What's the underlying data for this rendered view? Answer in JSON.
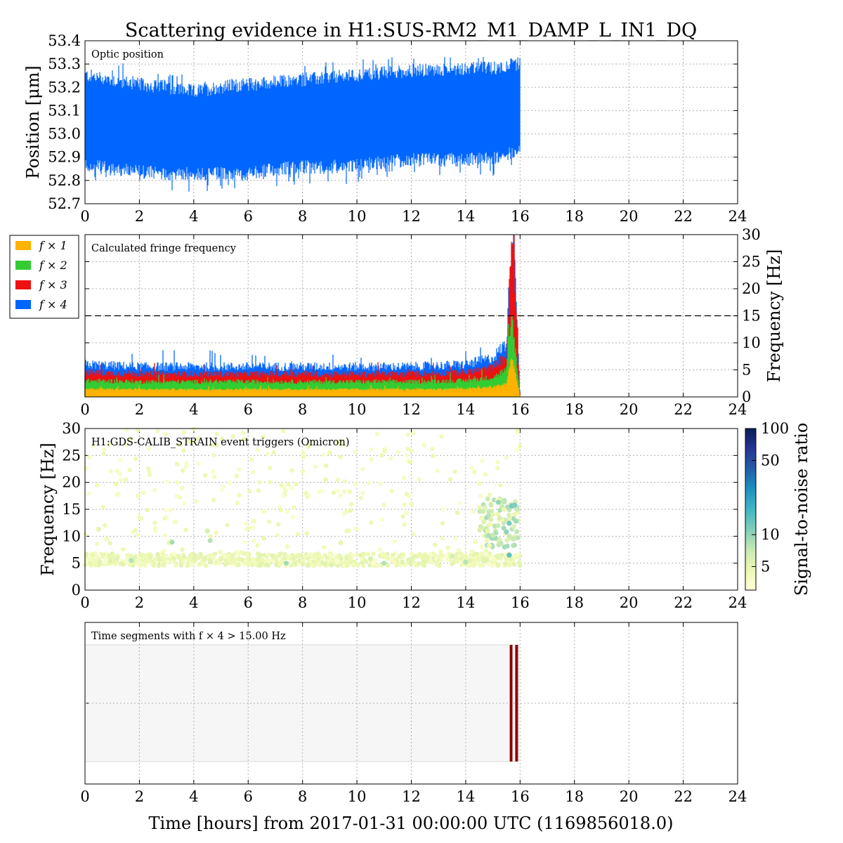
{
  "figure": {
    "title": "Scattering evidence in H1:SUS-RM2_M1_DAMP_L_IN1_DQ",
    "xlabel": "Time [hours] from 2017-01-31 00:00:00 UTC (1169856018.0)"
  },
  "colors": {
    "position": "#0066ff",
    "f1": "#ffb200",
    "f2": "#33cc33",
    "f3": "#ee1111",
    "f4": "#0066ff",
    "segment": "#8b0000",
    "segment_bg": "#f6f6f6"
  },
  "legend": {
    "f1": "f × 1",
    "f2": "f × 2",
    "f3": "f × 3",
    "f4": "f × 4"
  },
  "colorbar": {
    "label": "Signal-to-noise ratio",
    "ticks": [
      "5",
      "10",
      "50",
      "100"
    ],
    "scale": "log",
    "range": [
      3,
      100
    ],
    "colormap": [
      "#ffffd9",
      "#edf8b1",
      "#c7e9b4",
      "#7fcdbb",
      "#41b6c4",
      "#1d91c0",
      "#225ea8",
      "#253494",
      "#081d58"
    ]
  },
  "chart_data": [
    {
      "type": "area",
      "annotation": "Optic position",
      "ylabel": "Position [μm]",
      "xlim": [
        0,
        24
      ],
      "ylim": [
        52.7,
        53.4
      ],
      "xticks": [
        "0",
        "2",
        "4",
        "6",
        "8",
        "10",
        "12",
        "14",
        "16",
        "18",
        "20",
        "22",
        "24"
      ],
      "yticks": [
        "52.7",
        "52.8",
        "52.9",
        "53.0",
        "53.1",
        "53.2",
        "53.3",
        "53.4"
      ],
      "grid": true,
      "series": [
        {
          "x": [
            0,
            1,
            2,
            3,
            4,
            5,
            6,
            7,
            8,
            9,
            10,
            11,
            12,
            13,
            14,
            15,
            15.5,
            16
          ],
          "y_upper": [
            53.24,
            53.22,
            53.2,
            53.19,
            53.17,
            53.19,
            53.2,
            53.21,
            53.22,
            53.23,
            53.24,
            53.25,
            53.26,
            53.26,
            53.27,
            53.27,
            53.28,
            53.29
          ],
          "y_lower": [
            52.88,
            52.86,
            52.85,
            52.84,
            52.84,
            52.84,
            52.84,
            52.86,
            52.87,
            52.87,
            52.88,
            52.89,
            52.9,
            52.9,
            52.9,
            52.91,
            52.92,
            52.96
          ]
        }
      ]
    },
    {
      "type": "area",
      "annotation": "Calculated fringe frequency",
      "ylabel": "Frequency [Hz]",
      "xlim": [
        0,
        24
      ],
      "ylim": [
        0,
        30
      ],
      "xticks": [
        "0",
        "2",
        "4",
        "6",
        "8",
        "10",
        "12",
        "14",
        "16",
        "18",
        "20",
        "22",
        "24"
      ],
      "yticks": [
        "0",
        "5",
        "10",
        "15",
        "20",
        "25",
        "30"
      ],
      "threshold": 15,
      "grid": true,
      "series": [
        {
          "name": "f × 1",
          "x": [
            0,
            2,
            4,
            6,
            8,
            10,
            12,
            14,
            15,
            15.5,
            15.7,
            15.8,
            16
          ],
          "values": [
            1.5,
            1.4,
            1.4,
            1.4,
            1.4,
            1.4,
            1.4,
            1.5,
            1.8,
            2.5,
            7.5,
            5,
            0
          ]
        },
        {
          "name": "f × 2",
          "x": [
            0,
            2,
            4,
            6,
            8,
            10,
            12,
            14,
            15,
            15.5,
            15.7,
            15.8,
            16
          ],
          "values": [
            3,
            2.8,
            2.8,
            2.8,
            2.8,
            2.8,
            2.8,
            3,
            3.6,
            5,
            15,
            10,
            0
          ]
        },
        {
          "name": "f × 3",
          "x": [
            0,
            2,
            4,
            6,
            8,
            10,
            12,
            14,
            15,
            15.5,
            15.7,
            15.8,
            16
          ],
          "values": [
            4.5,
            4.2,
            4.2,
            4.2,
            4.2,
            4.2,
            4.2,
            4.5,
            5.4,
            7.5,
            30,
            21,
            0
          ]
        },
        {
          "name": "f × 4",
          "x": [
            0,
            2,
            4,
            6,
            8,
            10,
            12,
            14,
            15,
            15.5,
            15.7,
            15.8,
            16
          ],
          "values": [
            6,
            5.6,
            5.6,
            5.6,
            5.6,
            5.6,
            5.6,
            6,
            7.2,
            10,
            30,
            28,
            0
          ]
        }
      ]
    },
    {
      "type": "scatter",
      "annotation": "H1:GDS-CALIB_STRAIN event triggers (Omicron)",
      "ylabel": "Frequency [Hz]",
      "xlim": [
        0,
        24
      ],
      "ylim": [
        0,
        30
      ],
      "xticks": [
        "0",
        "2",
        "4",
        "6",
        "8",
        "10",
        "12",
        "14",
        "16",
        "18",
        "20",
        "22",
        "24"
      ],
      "yticks": [
        "0",
        "5",
        "10",
        "15",
        "20",
        "25",
        "30"
      ],
      "grid": true,
      "points": [
        {
          "x": 0.2,
          "y": 5.8,
          "snr": 4
        },
        {
          "x": 0.5,
          "y": 11.3,
          "snr": 5
        },
        {
          "x": 0.8,
          "y": 9.5,
          "snr": 4
        },
        {
          "x": 1.0,
          "y": 6.2,
          "snr": 5
        },
        {
          "x": 1.5,
          "y": 20.5,
          "snr": 4
        },
        {
          "x": 1.7,
          "y": 5.5,
          "snr": 8
        },
        {
          "x": 2.0,
          "y": 13.5,
          "snr": 4
        },
        {
          "x": 2.4,
          "y": 6.0,
          "snr": 5
        },
        {
          "x": 3.2,
          "y": 8.9,
          "snr": 9
        },
        {
          "x": 3.5,
          "y": 27.0,
          "snr": 4
        },
        {
          "x": 4.5,
          "y": 11.0,
          "snr": 6
        },
        {
          "x": 4.6,
          "y": 9.2,
          "snr": 8
        },
        {
          "x": 5.0,
          "y": 5.8,
          "snr": 5
        },
        {
          "x": 6.2,
          "y": 12.8,
          "snr": 4
        },
        {
          "x": 7.0,
          "y": 6.0,
          "snr": 5
        },
        {
          "x": 7.4,
          "y": 5.0,
          "snr": 9
        },
        {
          "x": 8.0,
          "y": 22.0,
          "snr": 4
        },
        {
          "x": 9.0,
          "y": 25.5,
          "snr": 4
        },
        {
          "x": 9.4,
          "y": 8.8,
          "snr": 5
        },
        {
          "x": 10.5,
          "y": 5.8,
          "snr": 6
        },
        {
          "x": 11.0,
          "y": 5.0,
          "snr": 8
        },
        {
          "x": 12.0,
          "y": 16.0,
          "snr": 4
        },
        {
          "x": 12.6,
          "y": 6.0,
          "snr": 5
        },
        {
          "x": 13.5,
          "y": 6.3,
          "snr": 6
        },
        {
          "x": 14.0,
          "y": 5.2,
          "snr": 8
        },
        {
          "x": 14.5,
          "y": 19.8,
          "snr": 4
        },
        {
          "x": 14.8,
          "y": 11.0,
          "snr": 5
        },
        {
          "x": 15.0,
          "y": 10.2,
          "snr": 7
        },
        {
          "x": 15.2,
          "y": 16.3,
          "snr": 10
        },
        {
          "x": 15.4,
          "y": 11.5,
          "snr": 9
        },
        {
          "x": 15.5,
          "y": 10.8,
          "snr": 10
        },
        {
          "x": 15.6,
          "y": 12.4,
          "snr": 12
        },
        {
          "x": 15.7,
          "y": 15.6,
          "snr": 12
        },
        {
          "x": 15.75,
          "y": 9.5,
          "snr": 7
        },
        {
          "x": 15.8,
          "y": 15.8,
          "snr": 11
        },
        {
          "x": 15.85,
          "y": 12.8,
          "snr": 9
        },
        {
          "x": 15.6,
          "y": 6.5,
          "snr": 14
        },
        {
          "x": 15.9,
          "y": 29.5,
          "snr": 4
        }
      ],
      "description_band": {
        "x_range": [
          0,
          16
        ],
        "y_range": [
          4.5,
          6.8
        ]
      }
    },
    {
      "type": "table",
      "annotation": "Time segments with f × 4 > 15.00 Hz",
      "xlim": [
        0,
        24
      ],
      "xticks": [
        "0",
        "2",
        "4",
        "6",
        "8",
        "10",
        "12",
        "14",
        "16",
        "18",
        "20",
        "22",
        "24"
      ],
      "xlabel": "Time [hours] from 2017-01-31 00:00:00 UTC (1169856018.0)",
      "known_range": [
        0,
        15.95
      ],
      "active_segments": [
        [
          15.62,
          15.72
        ],
        [
          15.82,
          15.92
        ]
      ]
    }
  ]
}
